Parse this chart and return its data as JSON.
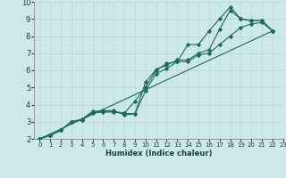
{
  "xlabel": "Humidex (Indice chaleur)",
  "xlim": [
    -0.5,
    23
  ],
  "ylim": [
    2,
    10
  ],
  "xticks": [
    0,
    1,
    2,
    3,
    4,
    5,
    6,
    7,
    8,
    9,
    10,
    11,
    12,
    13,
    14,
    15,
    16,
    17,
    18,
    19,
    20,
    21,
    22,
    23
  ],
  "yticks": [
    2,
    3,
    4,
    5,
    6,
    7,
    8,
    9,
    10
  ],
  "background_color": "#cce8e8",
  "grid_color": "#b8d8d8",
  "line_color": "#1a6b5a",
  "series": [
    {
      "x": [
        0,
        1,
        2,
        3,
        4,
        5,
        6,
        7,
        8,
        9,
        10,
        11,
        12,
        13,
        14,
        15,
        16,
        17,
        18,
        19,
        20,
        21,
        22
      ],
      "y": [
        2.0,
        2.2,
        2.5,
        3.0,
        3.1,
        3.5,
        3.6,
        3.55,
        3.5,
        4.2,
        5.0,
        6.0,
        6.4,
        6.5,
        7.5,
        7.5,
        8.3,
        9.0,
        9.7,
        9.0,
        8.9,
        8.9,
        8.3
      ]
    },
    {
      "x": [
        0,
        1,
        2,
        3,
        4,
        5,
        6,
        7,
        8,
        9,
        10,
        11,
        12,
        13,
        14,
        15,
        16,
        17,
        18,
        19,
        20,
        21,
        22
      ],
      "y": [
        2.0,
        2.2,
        2.5,
        3.0,
        3.15,
        3.6,
        3.65,
        3.65,
        3.4,
        3.45,
        5.3,
        6.05,
        6.3,
        6.6,
        6.6,
        7.0,
        7.2,
        8.4,
        9.5,
        9.0,
        8.9,
        8.9,
        8.3
      ]
    },
    {
      "x": [
        0,
        22
      ],
      "y": [
        2.0,
        8.3
      ]
    },
    {
      "x": [
        0,
        1,
        2,
        3,
        4,
        5,
        6,
        7,
        8,
        9,
        10,
        11,
        12,
        13,
        14,
        15,
        16,
        17,
        18,
        19,
        20,
        21,
        22
      ],
      "y": [
        2.0,
        2.2,
        2.5,
        3.0,
        3.1,
        3.55,
        3.55,
        3.6,
        3.5,
        3.45,
        4.8,
        5.8,
        6.1,
        6.5,
        6.5,
        6.9,
        7.0,
        7.5,
        8.0,
        8.5,
        8.7,
        8.8,
        8.3
      ]
    }
  ]
}
